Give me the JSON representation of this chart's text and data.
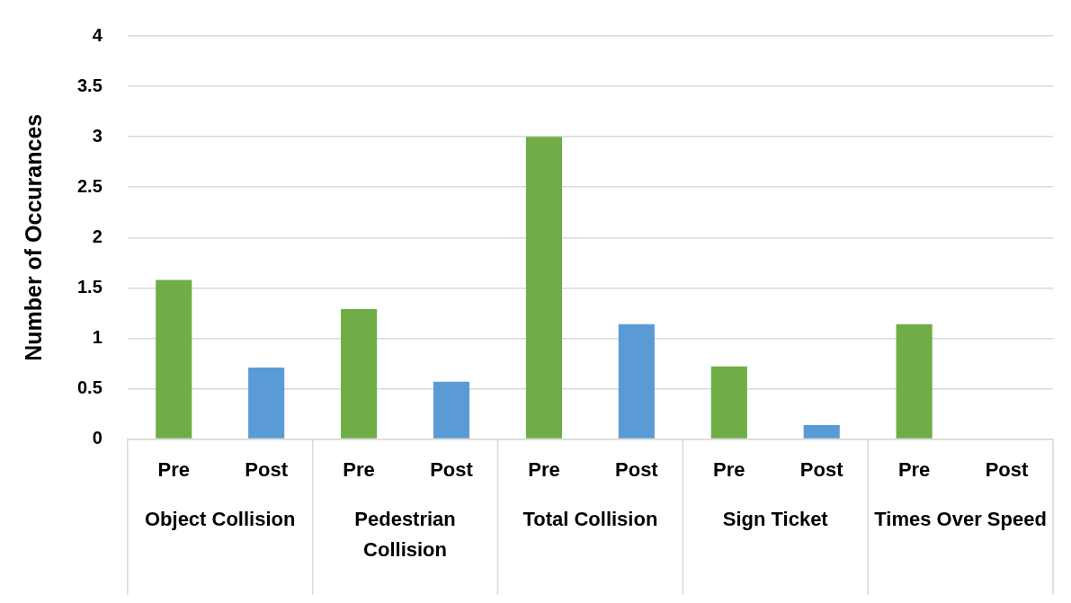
{
  "chart_data": {
    "type": "bar",
    "ylabel": "Number of Occurances",
    "categories": [
      "Pre",
      "Post",
      "Pre",
      "Post",
      "Pre",
      "Post",
      "Pre",
      "Post",
      "Pre",
      "Post"
    ],
    "values": [
      1.58,
      0.71,
      1.29,
      0.57,
      3,
      1.14,
      0.72,
      0.14,
      1.14,
      0
    ],
    "colors": [
      "#70ad47",
      "#5b9bd5",
      "#70ad47",
      "#5b9bd5",
      "#70ad47",
      "#5b9bd5",
      "#70ad47",
      "#5b9bd5",
      "#70ad47",
      "#5b9bd5"
    ],
    "ylim": [
      0,
      4
    ],
    "yticks": [
      0,
      0.5,
      1,
      1.5,
      2,
      2.5,
      3,
      3.5,
      4
    ],
    "grid": "y",
    "legend": false,
    "annotations": [
      "Object Collision",
      "Pedestrian Collision",
      "Total Collision",
      "Sign Ticket",
      "Times Over Speed"
    ]
  }
}
